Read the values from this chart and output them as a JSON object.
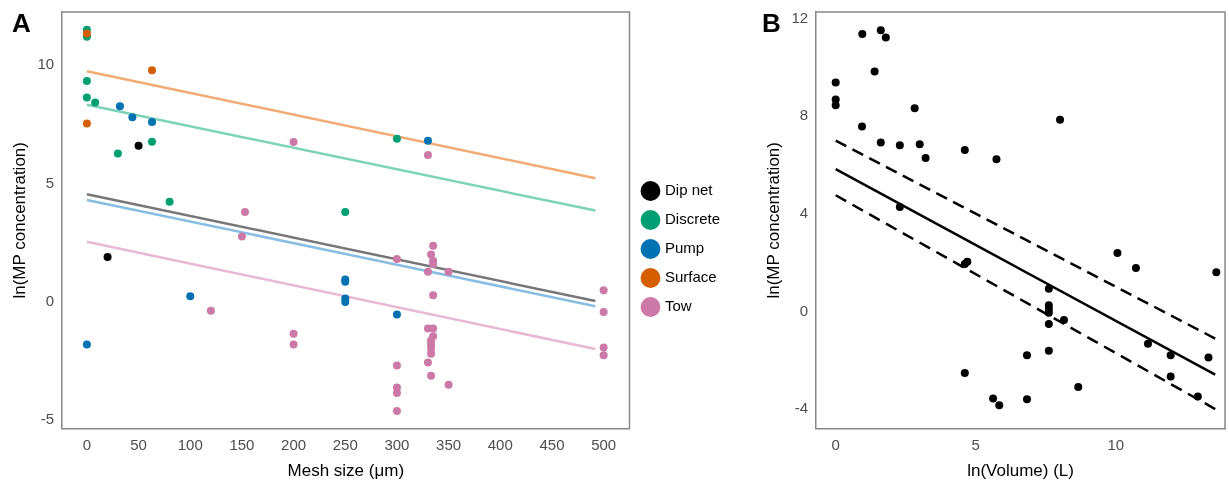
{
  "chart_data": [
    {
      "type": "scatter",
      "title": "A",
      "xlabel": "Mesh size (μm)",
      "ylabel": "ln(MP concentration)",
      "xlim": [
        -24,
        525
      ],
      "xticks": [
        0,
        50,
        100,
        150,
        200,
        250,
        300,
        350,
        400,
        450,
        500
      ],
      "ylim": [
        -5.35,
        12.25
      ],
      "yticks": [
        -5,
        0,
        5,
        10
      ],
      "legend": "right",
      "grid": false,
      "marker": "circle",
      "series": [
        {
          "name": "Dip net",
          "color": "#000000",
          "x": [
            20,
            50
          ],
          "values": [
            1.9,
            6.6
          ]
        },
        {
          "name": "Discrete",
          "color": "#009e73",
          "x": [
            0,
            0,
            0,
            0,
            8,
            30,
            63,
            80,
            250,
            300
          ],
          "values": [
            11.5,
            11.2,
            9.33,
            8.64,
            8.43,
            6.27,
            6.77,
            4.23,
            3.8,
            6.9
          ]
        },
        {
          "name": "Pump",
          "color": "#0072b2",
          "x": [
            0,
            32,
            44,
            63,
            100,
            250,
            250,
            250,
            250,
            300,
            330
          ],
          "values": [
            -1.8,
            8.27,
            7.8,
            7.6,
            0.24,
            0.95,
            0.85,
            0.15,
            0.0,
            -0.53,
            6.81
          ]
        },
        {
          "name": "Surface",
          "color": "#d55e00",
          "x": [
            0,
            0,
            63
          ],
          "values": [
            11.34,
            7.54,
            9.79
          ]
        },
        {
          "name": "Tow",
          "color": "#cc79a7",
          "x": [
            200,
            330,
            153,
            150,
            120,
            200,
            200,
            300,
            300,
            300,
            300,
            300,
            335,
            333,
            335,
            335,
            330,
            350,
            335,
            330,
            335,
            335,
            333,
            333,
            333,
            333,
            330,
            333,
            350,
            500,
            500,
            500,
            500
          ],
          "values": [
            6.76,
            6.21,
            3.8,
            2.77,
            -0.37,
            -1.34,
            -1.8,
            1.81,
            -2.68,
            -3.61,
            -3.85,
            -4.61,
            2.37,
            2.0,
            1.74,
            1.6,
            1.28,
            1.28,
            0.28,
            -1.12,
            -1.12,
            -1.45,
            -1.63,
            -1.8,
            -1.98,
            -2.19,
            -2.56,
            -3.12,
            -3.5,
            0.49,
            -0.42,
            -1.92,
            -2.25
          ]
        },
        {
          "type": "line",
          "marker": "none",
          "color": "#777777",
          "x": [
            0,
            492
          ],
          "values": [
            4.55,
            0.04
          ]
        },
        {
          "type": "line",
          "marker": "none",
          "color": "#7dd3b7",
          "x": [
            0,
            492
          ],
          "values": [
            8.33,
            3.86
          ]
        },
        {
          "type": "line",
          "marker": "none",
          "color": "#88bde3",
          "x": [
            0,
            492
          ],
          "values": [
            4.31,
            -0.18
          ]
        },
        {
          "type": "line",
          "marker": "none",
          "color": "#f2ab74",
          "x": [
            0,
            492
          ],
          "values": [
            9.75,
            5.23
          ]
        },
        {
          "type": "line",
          "marker": "none",
          "color": "#e8b8d2",
          "x": [
            0,
            492
          ],
          "values": [
            2.54,
            -1.99
          ]
        }
      ]
    },
    {
      "type": "scatter",
      "title": "B",
      "xlabel": "ln(Volume) (L)",
      "ylabel": "ln(MP concentration)",
      "xlim": [
        -0.7,
        13.9
      ],
      "xticks": [
        0,
        5,
        10
      ],
      "ylim": [
        -4.8,
        12.27
      ],
      "yticks": [
        -4,
        0,
        4,
        8,
        12
      ],
      "legend": false,
      "grid": false,
      "marker": "circle",
      "series": [
        {
          "color": "#000000",
          "x": [
            0,
            0,
            0,
            0.95,
            0.94,
            1.39,
            1.61,
            1.79,
            1.61,
            2.29,
            2.82,
            3.0,
            3.21,
            2.29,
            4.61,
            5.74,
            8.01,
            4.61,
            4.7,
            7.61,
            7.61,
            7.61,
            7.61,
            7.61,
            7.61,
            8.15,
            6.83,
            4.61,
            5.62,
            5.84,
            6.83,
            8.66,
            10.06,
            10.72,
            13.59,
            11.15,
            11.96,
            11.96,
            13.31,
            12.93
          ],
          "values": [
            9.38,
            8.68,
            8.45,
            11.37,
            7.58,
            9.83,
            11.52,
            11.23,
            6.92,
            6.81,
            8.33,
            6.85,
            6.29,
            4.28,
            6.62,
            6.24,
            7.85,
            1.94,
            2.04,
            0.93,
            0.25,
            0.1,
            -0.05,
            -0.51,
            -1.61,
            -0.35,
            -1.79,
            -2.52,
            -3.57,
            -3.84,
            -3.6,
            -3.1,
            2.4,
            1.78,
            1.61,
            -1.32,
            -1.79,
            -2.67,
            -1.89,
            -3.48
          ]
        },
        {
          "type": "line",
          "marker": "none",
          "color": "#000000",
          "line_style": "solid",
          "x": [
            0,
            13.55
          ],
          "values": [
            5.83,
            -2.59
          ]
        },
        {
          "type": "line",
          "marker": "none",
          "color": "#000000",
          "line_style": "dashed",
          "x": [
            0,
            13.55
          ],
          "values": [
            7.0,
            -1.11
          ]
        },
        {
          "type": "line",
          "marker": "none",
          "color": "#000000",
          "line_style": "dashed",
          "x": [
            0,
            13.55
          ],
          "values": [
            4.76,
            -4.0
          ]
        }
      ]
    }
  ]
}
